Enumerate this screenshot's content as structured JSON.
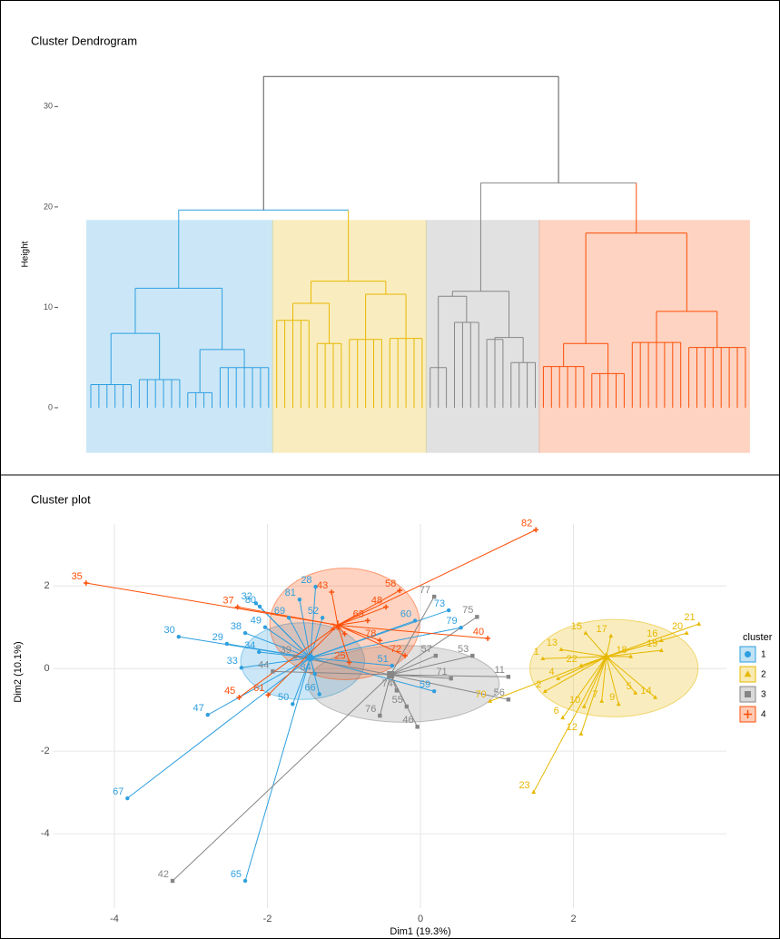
{
  "chart_data": [
    {
      "type": "dendrogram",
      "title": "Cluster Dendrogram",
      "y_label": "Height",
      "ylim": [
        -4.8,
        37
      ],
      "yticks": [
        0,
        10,
        20,
        30
      ],
      "band_ylim": [
        -4.5,
        18.7
      ],
      "root_color": "#555555",
      "root": {
        "height": 33,
        "left_height": 19.7,
        "right_height": 22.4
      },
      "clusters": [
        {
          "color": "#2E9FDF",
          "tree": {
            "height": 11.9,
            "children": [
              {
                "height": 7.4,
                "children": [
                  {
                    "height": 2.3,
                    "leaves": 6
                  },
                  {
                    "height": 2.8,
                    "leaves": 6
                  }
                ]
              },
              {
                "height": 5.8,
                "children": [
                  {
                    "height": 1.5,
                    "leaves": 4
                  },
                  {
                    "height": 4.0,
                    "leaves": 7
                  }
                ]
              }
            ]
          }
        },
        {
          "color": "#E7B800",
          "tree": {
            "height": 12.6,
            "children": [
              {
                "height": 10.4,
                "children": [
                  {
                    "height": 8.7,
                    "leaves": 5
                  },
                  {
                    "height": 6.4,
                    "leaves": 4
                  }
                ]
              },
              {
                "height": 11.3,
                "children": [
                  {
                    "height": 6.8,
                    "leaves": 5
                  },
                  {
                    "height": 6.9,
                    "leaves": 5
                  }
                ]
              }
            ]
          }
        },
        {
          "color": "#868686",
          "tree": {
            "height": 11.6,
            "children": [
              {
                "height": 11.1,
                "children": [
                  {
                    "height": 4.0,
                    "leaves": 3
                  },
                  {
                    "height": 8.5,
                    "leaves": 4
                  }
                ]
              },
              {
                "height": 7.0,
                "children": [
                  {
                    "height": 6.8,
                    "leaves": 3
                  },
                  {
                    "height": 4.5,
                    "leaves": 4
                  }
                ]
              }
            ]
          }
        },
        {
          "color": "#FC4E07",
          "tree": {
            "height": 17.4,
            "children": [
              {
                "height": 6.4,
                "children": [
                  {
                    "height": 4.1,
                    "leaves": 6
                  },
                  {
                    "height": 3.4,
                    "leaves": 5
                  }
                ]
              },
              {
                "height": 9.6,
                "children": [
                  {
                    "height": 6.5,
                    "leaves": 7
                  },
                  {
                    "height": 6.0,
                    "leaves": 8
                  }
                ]
              }
            ]
          }
        }
      ]
    },
    {
      "type": "cluster-scatter",
      "title": "Cluster plot",
      "x_label": "Dim1 (19.3%)",
      "y_label": "Dim2 (10.1%)",
      "xlim": [
        -4.8,
        4.0
      ],
      "ylim": [
        -5.8,
        3.5
      ],
      "xticks": [
        -4,
        -2,
        0,
        2
      ],
      "yticks": [
        2,
        0,
        -2,
        -4
      ],
      "grid": true,
      "legend_title": "cluster",
      "series": [
        {
          "name": "1",
          "color": "#2E9FDF",
          "shape": "circle",
          "center": [
            -1.44,
            0.26
          ],
          "ellipse": {
            "cx": -1.54,
            "cy": 0.18,
            "rx": 0.81,
            "ry": 0.93
          },
          "labels": [
            "30",
            "29",
            "38",
            "49",
            "32",
            "80",
            "81",
            "28",
            "33",
            "47",
            "67",
            "65",
            "50",
            "66",
            "84",
            "73",
            "79",
            "60",
            "51",
            "59",
            "34",
            "69",
            "52"
          ],
          "x": [
            -3.16,
            -2.53,
            -2.29,
            -2.03,
            -2.15,
            -2.1,
            -1.58,
            -1.37,
            -2.34,
            -2.78,
            -3.83,
            -2.29,
            -1.67,
            -1.32,
            -1.38,
            0.37,
            0.53,
            -0.07,
            -0.37,
            0.18,
            -2.11,
            -1.72,
            -1.28
          ],
          "y": [
            0.77,
            0.6,
            0.86,
            1.0,
            1.58,
            1.5,
            1.67,
            1.98,
            0.02,
            -1.12,
            -3.14,
            -5.14,
            -0.86,
            -0.62,
            -0.13,
            1.41,
            0.99,
            1.16,
            0.07,
            -0.55,
            0.4,
            1.23,
            1.23
          ]
        },
        {
          "name": "2",
          "color": "#E7B800",
          "shape": "triangle",
          "center": [
            2.43,
            0.29
          ],
          "ellipse": {
            "cx": 2.53,
            "cy": 0.01,
            "rx": 1.1,
            "ry": 1.18
          },
          "labels": [
            "1",
            "13",
            "15",
            "17",
            "16",
            "21",
            "20",
            "19",
            "22",
            "23",
            "4",
            "2",
            "6",
            "10",
            "12",
            "7",
            "9",
            "14",
            "5",
            "70",
            "18"
          ],
          "x": [
            1.6,
            1.84,
            2.16,
            2.49,
            3.15,
            3.64,
            3.48,
            3.15,
            2.1,
            1.48,
            1.8,
            1.63,
            1.86,
            2.14,
            2.1,
            2.37,
            2.59,
            3.07,
            2.81,
            0.91,
            2.75
          ],
          "y": [
            0.24,
            0.46,
            0.86,
            0.79,
            0.68,
            1.08,
            0.86,
            0.44,
            0.07,
            -2.99,
            -0.24,
            -0.55,
            -1.19,
            -0.92,
            -1.58,
            -0.79,
            -0.86,
            -0.7,
            -0.59,
            -0.79,
            0.29
          ]
        },
        {
          "name": "3",
          "color": "#868686",
          "shape": "square",
          "center": [
            -0.39,
            -0.15
          ],
          "ellipse": {
            "cx": -0.22,
            "cy": -0.37,
            "rx": 1.25,
            "ry": 0.93
          },
          "labels": [
            "77",
            "75",
            "53",
            "57",
            "11",
            "56",
            "71",
            "74",
            "76",
            "55",
            "46",
            "42",
            "44",
            "39"
          ],
          "x": [
            0.18,
            0.74,
            0.68,
            0.2,
            1.15,
            1.15,
            0.4,
            -0.31,
            -0.53,
            -0.18,
            -0.04,
            -3.24,
            -1.93,
            -1.64
          ],
          "y": [
            1.74,
            1.25,
            0.31,
            0.31,
            -0.2,
            -0.75,
            -0.24,
            -0.53,
            -1.14,
            -0.92,
            -1.41,
            -5.14,
            -0.07,
            0.29
          ]
        },
        {
          "name": "4",
          "color": "#FC4E07",
          "shape": "cross",
          "center": [
            -1.08,
            1.05
          ],
          "ellipse": {
            "cx": -0.99,
            "cy": 1.08,
            "rx": 0.98,
            "ry": 1.35
          },
          "labels": [
            "35",
            "37",
            "45",
            "61",
            "43",
            "58",
            "48",
            "63",
            "40",
            "82",
            "72",
            "25",
            "78",
            "24"
          ],
          "x": [
            -4.37,
            -2.39,
            -2.37,
            -1.99,
            -1.16,
            -0.27,
            -0.45,
            -0.69,
            0.88,
            1.51,
            -0.2,
            -0.93,
            -0.53,
            -0.99
          ],
          "y": [
            2.07,
            1.49,
            -0.7,
            -0.64,
            1.85,
            1.89,
            1.49,
            1.16,
            0.73,
            3.36,
            0.31,
            0.15,
            0.68,
            0.84
          ]
        }
      ]
    }
  ]
}
